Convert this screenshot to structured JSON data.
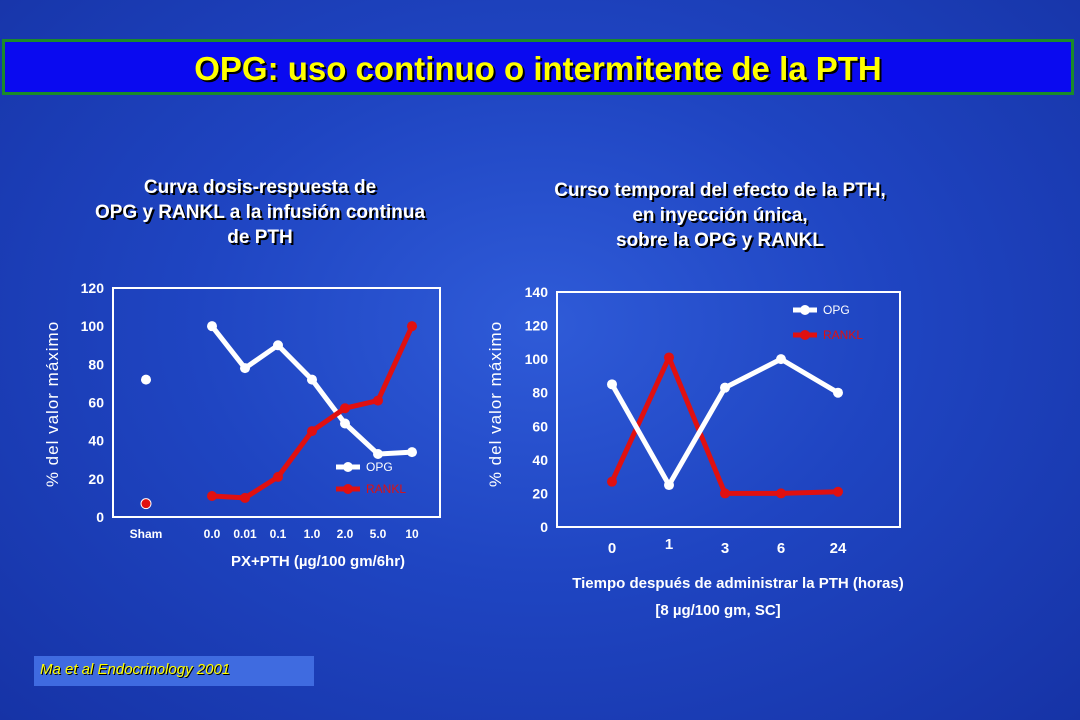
{
  "slide": {
    "title": "OPG: uso continuo o intermitente de la PTH",
    "citation": "Ma et al Endocrinology 2001"
  },
  "colors": {
    "opg": "#ffffff",
    "rankl": "#e01010",
    "title": "#ffff00"
  },
  "chart_data": [
    {
      "type": "line",
      "title_lines": [
        "Curva dosis-respuesta de",
        "OPG y RANKL a la infusión continua",
        "de PTH"
      ],
      "ylabel": "% del valor máximo",
      "xlabel": "PX+PTH (µg/100 gm/6hr)",
      "ylim": [
        0,
        120
      ],
      "yticks": [
        "0",
        "20",
        "40",
        "60",
        "80",
        "100",
        "120"
      ],
      "sham": {
        "label": "Sham",
        "opg": 72,
        "rankl": 7
      },
      "categories": [
        "0.0",
        "0.01",
        "0.1",
        "1.0",
        "2.0",
        "5.0",
        "10"
      ],
      "series": [
        {
          "name": "OPG",
          "values": [
            100,
            78,
            90,
            72,
            49,
            33,
            34
          ]
        },
        {
          "name": "RANKL",
          "values": [
            11,
            10,
            21,
            45,
            57,
            61,
            100
          ]
        }
      ],
      "legend_position": "bottom-right"
    },
    {
      "type": "line",
      "title_lines": [
        "Curso temporal del efecto de la PTH,",
        "en inyección única,",
        "sobre la OPG y RANKL"
      ],
      "ylabel": "% del valor máximo",
      "xlabel_lines": [
        "Tiempo después de administrar la PTH (horas)",
        "[8 µg/100 gm, SC]"
      ],
      "ylim": [
        0,
        140
      ],
      "yticks": [
        "0",
        "20",
        "40",
        "60",
        "80",
        "100",
        "120",
        "140"
      ],
      "categories": [
        "0",
        "1",
        "3",
        "6",
        "24"
      ],
      "series": [
        {
          "name": "OPG",
          "values": [
            85,
            25,
            83,
            100,
            80
          ]
        },
        {
          "name": "RANKL",
          "values": [
            27,
            101,
            20,
            20,
            21
          ]
        }
      ],
      "legend_position": "top-right"
    }
  ]
}
